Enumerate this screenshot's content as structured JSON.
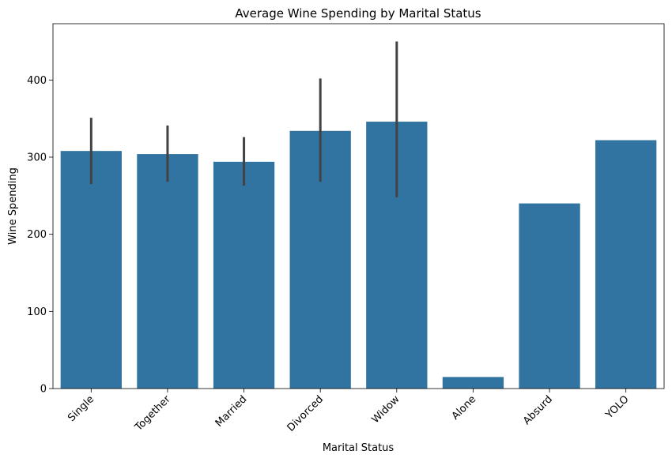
{
  "chart_data": {
    "type": "bar",
    "title": "Average Wine Spending by Marital Status",
    "xlabel": "Marital Status",
    "ylabel": "Wine Spending",
    "categories": [
      "Single",
      "Together",
      "Married",
      "Divorced",
      "Widow",
      "Alone",
      "Absurd",
      "YOLO"
    ],
    "values": [
      308,
      304,
      294,
      334,
      346,
      15,
      240,
      322
    ],
    "error_low": [
      265,
      268,
      263,
      268,
      248,
      null,
      null,
      null
    ],
    "error_high": [
      351,
      341,
      326,
      402,
      450,
      null,
      null,
      null
    ],
    "ylim": [
      0,
      473
    ],
    "yticks": [
      0,
      100,
      200,
      300,
      400
    ],
    "grid": false,
    "bar_color": "#3274a1",
    "error_color": "#424242"
  }
}
